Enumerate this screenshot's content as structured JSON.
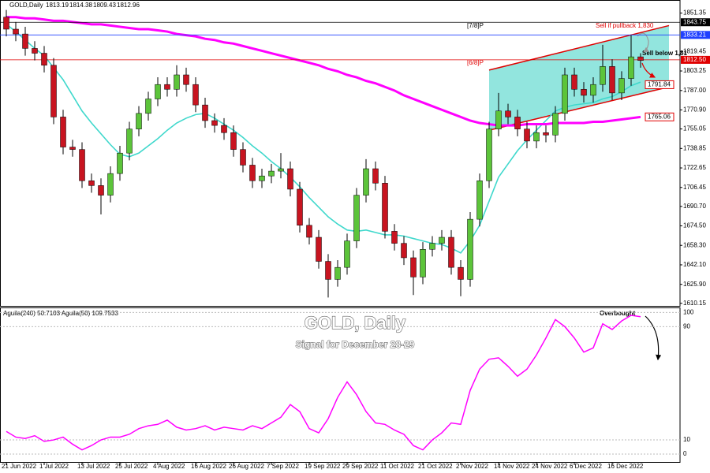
{
  "chart_data": {
    "type": "candlestick",
    "symbol": "GOLD,Daily",
    "ohlc_header": [
      1813.19,
      1814.38,
      1809.43,
      1812.96
    ],
    "title": "GOLD, Daily",
    "subtitle": "Signal for December  28-29",
    "categories": [
      "21 Jun 2022",
      null,
      null,
      null,
      "1 Jul 2022",
      null,
      null,
      null,
      "13 Jul 2022",
      null,
      null,
      null,
      "25 Jul 2022",
      null,
      null,
      null,
      "4 Aug 2022",
      null,
      null,
      null,
      "16 Aug 2022",
      null,
      null,
      null,
      "26 Aug 2022",
      null,
      null,
      null,
      "7 Sep 2022",
      null,
      null,
      null,
      "19 Sep 2022",
      null,
      null,
      null,
      "29 Sep 2022",
      null,
      null,
      null,
      "11 Oct 2022",
      null,
      null,
      null,
      "21 Oct 2022",
      null,
      null,
      null,
      "2 Nov 2022",
      null,
      null,
      null,
      "14 Nov 2022",
      null,
      null,
      null,
      "24 Nov 2022",
      null,
      null,
      null,
      "6 Dec 2022",
      null,
      null,
      null,
      "16 Dec 2022",
      null,
      null,
      null
    ],
    "open": [
      1848,
      1838,
      1834,
      1822,
      1818,
      1808,
      1765,
      1740,
      1738,
      1712,
      1708,
      1700,
      1718,
      1735,
      1755,
      1768,
      1780,
      1792,
      1788,
      1800,
      1792,
      1775,
      1762,
      1758,
      1752,
      1738,
      1725,
      1712,
      1716,
      1720,
      1722,
      1705,
      1675,
      1665,
      1645,
      1630,
      1640,
      1662,
      1700,
      1722,
      1710,
      1670,
      1660,
      1648,
      1632,
      1655,
      1660,
      1665,
      1640,
      1630,
      1680,
      1712,
      1755,
      1770,
      1765,
      1755,
      1745,
      1752,
      1750,
      1768,
      1800,
      1788,
      1783,
      1792,
      1807,
      1785,
      1797,
      1815
    ],
    "high": [
      1854,
      1844,
      1840,
      1828,
      1824,
      1814,
      1771,
      1746,
      1744,
      1718,
      1714,
      1724,
      1741,
      1761,
      1774,
      1786,
      1798,
      1798,
      1808,
      1806,
      1798,
      1781,
      1768,
      1764,
      1758,
      1744,
      1731,
      1722,
      1726,
      1735,
      1728,
      1711,
      1681,
      1671,
      1651,
      1646,
      1668,
      1706,
      1730,
      1728,
      1716,
      1676,
      1666,
      1654,
      1661,
      1666,
      1671,
      1671,
      1646,
      1686,
      1718,
      1761,
      1785,
      1776,
      1771,
      1761,
      1758,
      1758,
      1774,
      1806,
      1806,
      1794,
      1798,
      1825,
      1813,
      1803,
      1833,
      1818
    ],
    "low": [
      1832,
      1828,
      1816,
      1812,
      1802,
      1759,
      1734,
      1732,
      1706,
      1702,
      1684,
      1694,
      1712,
      1729,
      1749,
      1762,
      1774,
      1782,
      1782,
      1786,
      1769,
      1756,
      1752,
      1746,
      1732,
      1719,
      1706,
      1706,
      1710,
      1714,
      1699,
      1669,
      1659,
      1639,
      1615,
      1624,
      1634,
      1656,
      1694,
      1704,
      1664,
      1654,
      1642,
      1617,
      1626,
      1649,
      1654,
      1634,
      1616,
      1624,
      1674,
      1706,
      1749,
      1759,
      1749,
      1739,
      1739,
      1744,
      1744,
      1762,
      1782,
      1777,
      1777,
      1786,
      1779,
      1779,
      1791,
      1806
    ],
    "close": [
      1838,
      1834,
      1822,
      1818,
      1808,
      1765,
      1740,
      1738,
      1712,
      1708,
      1700,
      1718,
      1735,
      1755,
      1768,
      1780,
      1792,
      1788,
      1800,
      1792,
      1775,
      1762,
      1758,
      1752,
      1738,
      1725,
      1712,
      1716,
      1720,
      1722,
      1705,
      1675,
      1665,
      1645,
      1630,
      1640,
      1662,
      1700,
      1722,
      1710,
      1670,
      1660,
      1648,
      1632,
      1655,
      1660,
      1665,
      1640,
      1630,
      1680,
      1712,
      1755,
      1770,
      1765,
      1755,
      1745,
      1752,
      1750,
      1768,
      1800,
      1788,
      1783,
      1792,
      1807,
      1785,
      1797,
      1815,
      1812
    ],
    "up_color": "#5cc43a",
    "down_color": "#c81420",
    "ylim": [
      1608,
      1857
    ],
    "yticks": [
      1851.35,
      1819.45,
      1803.25,
      {
        "value": 1787,
        "label": "1787.00"
      },
      {
        "value": 1770.9,
        "label": "1770.90"
      },
      1755.05,
      1738.85,
      1722.65,
      1706.45,
      {
        "value": 1690.7,
        "label": "1690.70"
      },
      {
        "value": 1674.5,
        "label": "1674.50"
      },
      {
        "value": 1658.3,
        "label": "1658.30"
      },
      {
        "value": 1642.1,
        "label": "1642.10"
      },
      {
        "value": 1625.9,
        "label": "1625.90"
      },
      1610.15
    ],
    "lines": [
      {
        "color": "#3fd8cc",
        "values": [
          1842,
          1836,
          1829,
          1822,
          1816,
          1806,
          1796,
          1783,
          1770,
          1760,
          1751,
          1742,
          1734,
          1732,
          1735,
          1741,
          1747,
          1754,
          1760,
          1764,
          1767,
          1768,
          1764,
          1759,
          1754,
          1748,
          1741,
          1735,
          1728,
          1722,
          1715,
          1707,
          1698,
          1690,
          1682,
          1676,
          1671,
          1670,
          1671,
          1669,
          1667,
          1667,
          1666,
          1664,
          1662,
          1660,
          1659,
          1656,
          1652,
          1662,
          1675,
          1695,
          1715,
          1726,
          1737,
          1746,
          1754,
          1762,
          1770,
          1773,
          1775,
          1776,
          1777,
          1780,
          1782,
          1786,
          1791,
          1794
        ]
      },
      {
        "color": "#ff00ff",
        "values": [
          1848,
          1848,
          1847,
          1847,
          1846,
          1845,
          1845,
          1844,
          1843,
          1842,
          1842,
          1841,
          1840,
          1839,
          1838,
          1838,
          1837,
          1836,
          1834,
          1833,
          1832,
          1830,
          1829,
          1827,
          1826,
          1824,
          1822,
          1820,
          1818,
          1816,
          1814,
          1812,
          1810,
          1808,
          1805,
          1803,
          1800,
          1798,
          1795,
          1793,
          1790,
          1787,
          1783,
          1780,
          1777,
          1774,
          1771,
          1768,
          1765,
          1762,
          1760,
          1759,
          1758,
          1758,
          1758,
          1759,
          1759,
          1759,
          1760,
          1760,
          1760,
          1760,
          1761,
          1761,
          1762,
          1763,
          1764,
          1765
        ]
      }
    ],
    "levels": [
      {
        "value": 1843.75,
        "color": "#000000",
        "line": true
      },
      {
        "value": 1833.21,
        "color": "#2040ff",
        "line": true
      },
      {
        "value": 1812.5,
        "label": "1812.50",
        "color": "#e00000",
        "line": true
      },
      {
        "value": 1791.84,
        "color": "#e00000",
        "line": false
      },
      {
        "value": 1765.06,
        "color": "#e00000",
        "line": false
      }
    ],
    "channel": {
      "x": [
        51,
        70
      ],
      "upper": [
        1804,
        1841
      ],
      "lower": [
        1754,
        1790
      ],
      "color": "#e00000",
      "fill": "#7fe0d8"
    },
    "annotations": {
      "p78": "[7/8]P",
      "p68": "[6/8]P",
      "sell_pullback": "Sell if pullback 1,830",
      "sell_below": "Sell below 1,81",
      "overbought": "Overbought"
    },
    "indicator": {
      "label": "Aguila(240) 50.7103  Aguila(50) 109.7533",
      "color": "#ff00ff",
      "ylim": [
        -5,
        103
      ],
      "yticks": [
        100,
        90,
        10,
        0
      ],
      "grid": true,
      "values": [
        16,
        12,
        11,
        13,
        9,
        10,
        12,
        7,
        3,
        6,
        10,
        12,
        12,
        14,
        18,
        20,
        21,
        24,
        19,
        17,
        18,
        20,
        17,
        19,
        18,
        17,
        20,
        18,
        22,
        26,
        35,
        30,
        18,
        15,
        25,
        40,
        51,
        42,
        30,
        22,
        21,
        17,
        14,
        6,
        3,
        10,
        15,
        22,
        21,
        45,
        60,
        67,
        68,
        62,
        55,
        60,
        70,
        82,
        95,
        90,
        82,
        72,
        75,
        92,
        88,
        94,
        98,
        97
      ]
    }
  }
}
